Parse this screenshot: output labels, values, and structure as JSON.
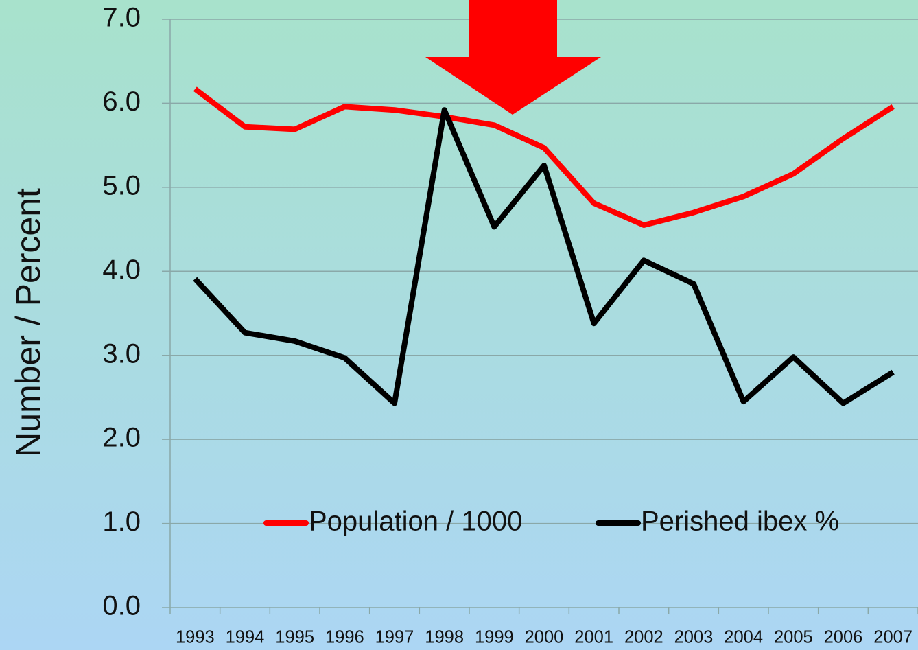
{
  "chart_data": {
    "type": "line",
    "y_label": "Number / Percent",
    "categories": [
      "1993",
      "1994",
      "1995",
      "1996",
      "1997",
      "1998",
      "1999",
      "2000",
      "2001",
      "2002",
      "2003",
      "2004",
      "2005",
      "2006",
      "2007"
    ],
    "series": [
      {
        "name": "Population / 1000",
        "color": "#ff0000",
        "values": [
          6.17,
          5.72,
          5.69,
          5.96,
          5.92,
          5.84,
          5.74,
          5.47,
          4.81,
          4.55,
          4.7,
          4.89,
          5.16,
          5.58,
          5.96
        ]
      },
      {
        "name": "Perished ibex %",
        "color": "#000000",
        "values": [
          3.91,
          3.27,
          3.17,
          2.97,
          2.43,
          5.92,
          4.53,
          5.26,
          3.38,
          4.13,
          3.85,
          2.45,
          2.98,
          2.43,
          2.8
        ]
      }
    ],
    "ylim": [
      0,
      7
    ],
    "yticks": [
      {
        "value": 0,
        "label": "0.0"
      },
      {
        "value": 1,
        "label": "1.0"
      },
      {
        "value": 2,
        "label": "2.0"
      },
      {
        "value": 3,
        "label": "3.0"
      },
      {
        "value": 4,
        "label": "4.0"
      },
      {
        "value": 5,
        "label": "5.0"
      },
      {
        "value": 6,
        "label": "6.0"
      },
      {
        "value": 7,
        "label": "7.0"
      }
    ],
    "grid": true
  }
}
